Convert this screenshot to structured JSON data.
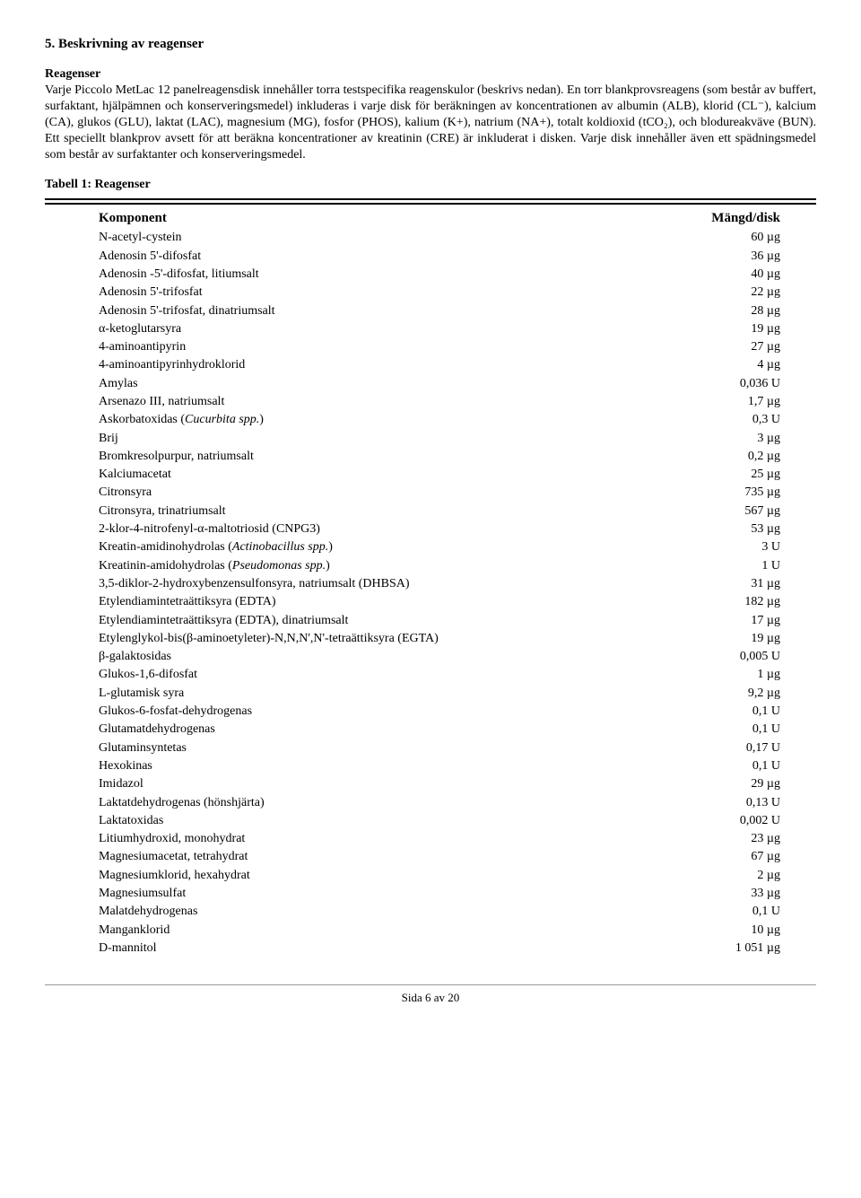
{
  "section": {
    "heading": "5. Beskrivning av reagenser",
    "sub_heading": "Reagenser",
    "intro": "Varje Piccolo MetLac 12 panelreagensdisk innehåller torra testspecifika reagenskulor (beskrivs nedan). En torr blankprovsreagens (som består av buffert, surfaktant, hjälpämnen och konserveringsmedel) inkluderas i varje disk för beräkningen av koncentrationen av albumin (ALB), klorid (CL⁻), kalcium (CA), glukos (GLU), laktat (LAC), magnesium (MG), fosfor (PHOS), kalium (K+), natrium (NA+), totalt koldioxid (tCO₂), och blodureakväve (BUN). Ett speciellt blankprov avsett för att beräkna koncentrationer av kreatinin (CRE) är inkluderat i disken. Varje disk innehåller även ett spädningsmedel som består av surfaktanter och konserveringsmedel.",
    "table_title": "Tabell 1: Reagenser",
    "header_component": "Komponent",
    "header_amount": "Mängd/disk",
    "rows": [
      {
        "c": "N-acetyl-cystein",
        "a": "60 µg"
      },
      {
        "c": "Adenosin 5'-difosfat",
        "a": "36 µg"
      },
      {
        "c": "Adenosin -5'-difosfat, litiumsalt",
        "a": "40 µg"
      },
      {
        "c": "Adenosin 5'-trifosfat",
        "a": "22 µg"
      },
      {
        "c": "Adenosin 5'-trifosfat, dinatriumsalt",
        "a": "28 µg"
      },
      {
        "c": "α-ketoglutarsyra",
        "a": "19 µg"
      },
      {
        "c": "4-aminoantipyrin",
        "a": "27 µg"
      },
      {
        "c": "4-aminoantipyrinhydroklorid",
        "a": "4 µg"
      },
      {
        "c": "Amylas",
        "a": "0,036 U"
      },
      {
        "c": "Arsenazo III, natriumsalt",
        "a": "1,7 µg"
      },
      {
        "c": "Askorbatoxidas (",
        "i": "Cucurbita spp.",
        "c2": ")",
        "a": "0,3 U"
      },
      {
        "c": "Brij",
        "a": "3 µg"
      },
      {
        "c": "Bromkresolpurpur, natriumsalt",
        "a": "0,2 µg"
      },
      {
        "c": "Kalciumacetat",
        "a": "25 µg"
      },
      {
        "c": "Citronsyra",
        "a": "735 µg"
      },
      {
        "c": "Citronsyra, trinatriumsalt",
        "a": "567 µg"
      },
      {
        "c": "2-klor-4-nitrofenyl-α-maltotriosid (CNPG3)",
        "a": "53 µg"
      },
      {
        "c": "Kreatin-amidinohydrolas (",
        "i": "Actinobacillus spp.",
        "c2": ")",
        "a": "3 U"
      },
      {
        "c": "Kreatinin-amidohydrolas (",
        "i": "Pseudomonas spp.",
        "c2": ")",
        "a": "1 U"
      },
      {
        "c": "3,5-diklor-2-hydroxybenzensulfonsyra, natriumsalt (DHBSA)",
        "a": "31 µg"
      },
      {
        "c": "Etylendiamintetraättiksyra (EDTA)",
        "a": "182 µg"
      },
      {
        "c": "Etylendiamintetraättiksyra (EDTA), dinatriumsalt",
        "a": "17 µg"
      },
      {
        "c": "Etylenglykol-bis(β-aminoetyleter)-N,N,N',N'-tetraättiksyra (EGTA)",
        "a": "19 µg"
      },
      {
        "c": "β-galaktosidas",
        "a": "0,005 U"
      },
      {
        "c": "Glukos-1,6-difosfat",
        "a": "1 µg"
      },
      {
        "c": "L-glutamisk syra",
        "a": "9,2 µg"
      },
      {
        "c": "Glukos-6-fosfat-dehydrogenas",
        "a": "0,1 U"
      },
      {
        "c": "Glutamatdehydrogenas",
        "a": "0,1 U"
      },
      {
        "c": "Glutaminsyntetas",
        "a": "0,17 U"
      },
      {
        "c": "Hexokinas",
        "a": "0,1 U"
      },
      {
        "c": "Imidazol",
        "a": "29 µg"
      },
      {
        "c": "Laktatdehydrogenas (hönshjärta)",
        "a": "0,13 U"
      },
      {
        "c": "Laktatoxidas",
        "a": "0,002 U"
      },
      {
        "c": "Litiumhydroxid, monohydrat",
        "a": "23 µg"
      },
      {
        "c": "Magnesiumacetat, tetrahydrat",
        "a": "67 µg"
      },
      {
        "c": "Magnesiumklorid, hexahydrat",
        "a": "2 µg"
      },
      {
        "c": "Magnesiumsulfat",
        "a": "33 µg"
      },
      {
        "c": "Malatdehydrogenas",
        "a": "0,1 U"
      },
      {
        "c": "Manganklorid",
        "a": "10 µg"
      },
      {
        "c": "D-mannitol",
        "a": "1 051 µg"
      }
    ]
  },
  "footer": "Sida 6 av 20"
}
